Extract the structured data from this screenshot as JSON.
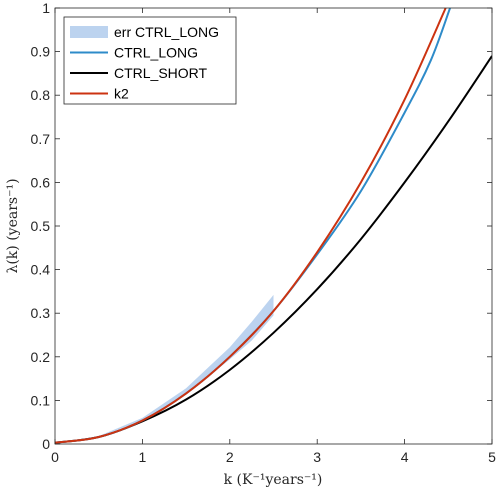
{
  "chart_data": {
    "type": "line",
    "title": "",
    "xlabel": "k (K⁻¹years⁻¹)",
    "ylabel": "λ(k) (years⁻¹)",
    "xlim": [
      0,
      5
    ],
    "ylim": [
      0,
      1
    ],
    "xticks": [
      0,
      1,
      2,
      3,
      4,
      5
    ],
    "yticks": [
      0,
      0.1,
      0.2,
      0.3,
      0.4,
      0.5,
      0.6,
      0.7,
      0.8,
      0.9,
      1
    ],
    "xtick_labels": [
      "0",
      "1",
      "2",
      "3",
      "4",
      "5"
    ],
    "ytick_labels": [
      "0",
      "0.1",
      "0.2",
      "0.3",
      "0.4",
      "0.5",
      "0.6",
      "0.7",
      "0.8",
      "0.9",
      "1"
    ],
    "grid": false,
    "legend_position": "top-left",
    "legend": [
      {
        "label": "err CTRL_LONG",
        "kind": "band",
        "color": "#bcd3ef"
      },
      {
        "label": "CTRL_LONG",
        "kind": "line",
        "color": "#2e8bc9"
      },
      {
        "label": "CTRL_SHORT",
        "kind": "line",
        "color": "#000000"
      },
      {
        "label": "k2",
        "kind": "line",
        "color": "#cc3311"
      }
    ],
    "band": {
      "name": "err CTRL_LONG",
      "color": "#bcd3ef",
      "x": [
        0,
        0.5,
        1.0,
        1.5,
        2.0,
        2.25,
        2.5
      ],
      "lower": [
        0.002,
        0.016,
        0.054,
        0.114,
        0.194,
        0.237,
        0.295
      ],
      "upper": [
        0.002,
        0.018,
        0.06,
        0.128,
        0.222,
        0.28,
        0.342
      ]
    },
    "series": [
      {
        "name": "CTRL_LONG",
        "color": "#2e8bc9",
        "x": [
          0,
          0.5,
          1.0,
          1.5,
          2.0,
          2.5,
          3.0,
          3.5,
          4.0,
          4.3,
          4.52
        ],
        "y": [
          0.003,
          0.016,
          0.054,
          0.116,
          0.2,
          0.305,
          0.435,
          0.58,
          0.76,
          0.88,
          1.0
        ]
      },
      {
        "name": "CTRL_SHORT",
        "color": "#000000",
        "x": [
          0,
          0.5,
          1.0,
          1.5,
          2.0,
          2.5,
          3.0,
          3.5,
          4.0,
          4.5,
          5.0
        ],
        "y": [
          0.003,
          0.016,
          0.052,
          0.102,
          0.17,
          0.255,
          0.355,
          0.47,
          0.6,
          0.74,
          0.89
        ]
      },
      {
        "name": "k2",
        "color": "#cc3311",
        "x": [
          0,
          0.5,
          1.0,
          1.5,
          2.0,
          2.5,
          3.0,
          3.5,
          4.0,
          4.47
        ],
        "y": [
          0.003,
          0.016,
          0.054,
          0.116,
          0.2,
          0.305,
          0.44,
          0.6,
          0.79,
          1.0
        ]
      }
    ]
  }
}
